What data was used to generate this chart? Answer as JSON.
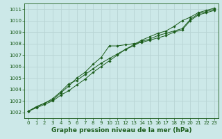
{
  "x": [
    0,
    1,
    2,
    3,
    4,
    5,
    6,
    7,
    8,
    9,
    10,
    11,
    12,
    13,
    14,
    15,
    16,
    17,
    18,
    19,
    20,
    21,
    22,
    23
  ],
  "line1": [
    1002.1,
    1002.5,
    1002.8,
    1003.1,
    1003.7,
    1004.3,
    1005.0,
    1005.5,
    1006.2,
    1006.8,
    1007.8,
    1007.8,
    1007.9,
    1008.0,
    1008.1,
    1008.3,
    1008.5,
    1008.7,
    1009.0,
    1009.2,
    1010.0,
    1010.5,
    1010.7,
    1010.9
  ],
  "line2": [
    1002.1,
    1002.5,
    1002.8,
    1003.2,
    1003.8,
    1004.5,
    1004.8,
    1005.3,
    1005.8,
    1006.3,
    1006.7,
    1007.1,
    1007.5,
    1007.8,
    1008.2,
    1008.4,
    1008.7,
    1008.9,
    1009.1,
    1009.3,
    1010.1,
    1010.6,
    1010.8,
    1011.0
  ],
  "line3": [
    1002.1,
    1002.4,
    1002.7,
    1003.0,
    1003.5,
    1003.9,
    1004.4,
    1004.9,
    1005.5,
    1006.0,
    1006.5,
    1007.0,
    1007.5,
    1007.9,
    1008.3,
    1008.6,
    1008.9,
    1009.1,
    1009.5,
    1010.0,
    1010.3,
    1010.7,
    1010.9,
    1011.1
  ],
  "line_color": "#1a5c1a",
  "bg_color": "#cce8e8",
  "grid_color": "#b8d4d4",
  "xlabel": "Graphe pression niveau de la mer (hPa)",
  "ylim": [
    1001.5,
    1011.5
  ],
  "xlim": [
    -0.5,
    23.5
  ],
  "yticks": [
    1002,
    1003,
    1004,
    1005,
    1006,
    1007,
    1008,
    1009,
    1010,
    1011
  ],
  "xticks": [
    0,
    1,
    2,
    3,
    4,
    5,
    6,
    7,
    8,
    9,
    10,
    11,
    12,
    13,
    14,
    15,
    16,
    17,
    18,
    19,
    20,
    21,
    22,
    23
  ],
  "tick_color": "#1a5c1a",
  "font_color": "#1a5c1a",
  "xlabel_fontsize": 6.5,
  "tick_fontsize": 5.0,
  "figwidth": 3.2,
  "figheight": 2.0,
  "dpi": 100
}
